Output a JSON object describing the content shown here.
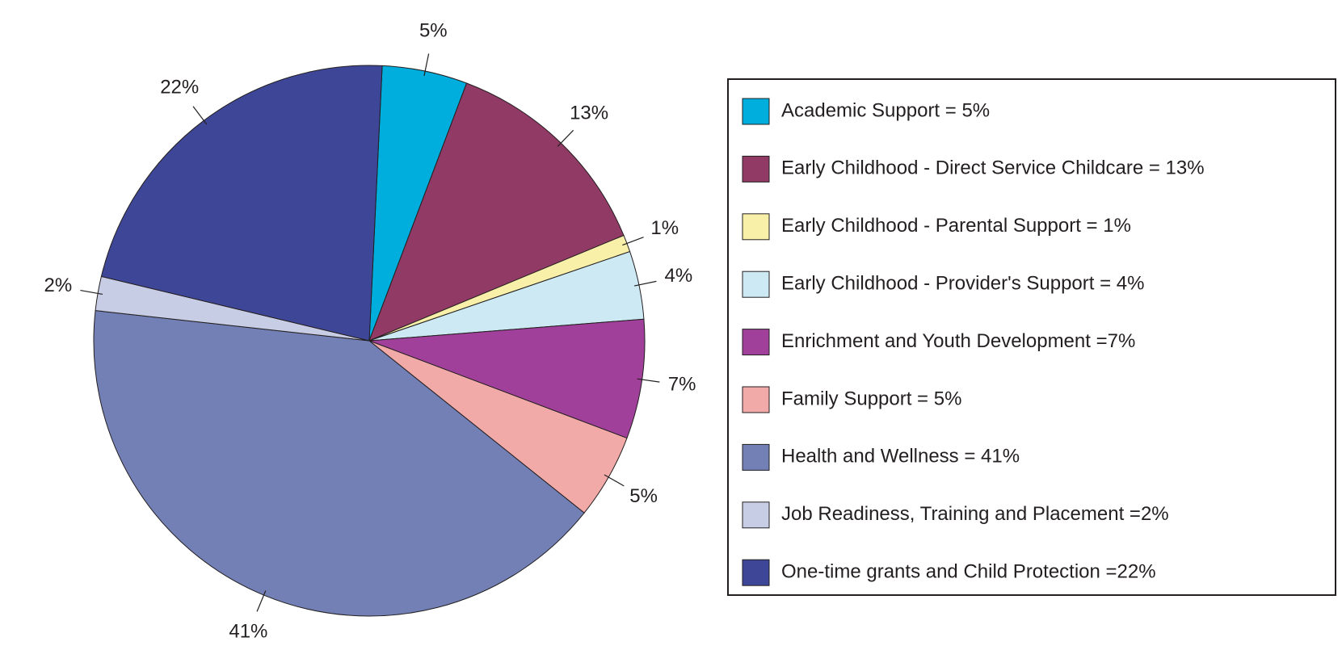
{
  "chart_data": {
    "type": "pie",
    "categories": [
      "Academic Support  = 5%",
      "Early Childhood - Direct Service Childcare  = 13%",
      "Early Childhood - Parental Support = 1%",
      "Early Childhood - Provider's Support = 4%",
      "Enrichment and Youth Development =7%",
      "Family Support = 5%",
      "Health and Wellness = 41%",
      "Job Readiness, Training and Placement =2%",
      "One-time grants and Child Protection =22%"
    ],
    "values": [
      5,
      13,
      1,
      4,
      7,
      5,
      41,
      2,
      22
    ],
    "value_labels": [
      "5%",
      "13%",
      "1%",
      "4%",
      "7%",
      "5%",
      "41%",
      "2%",
      "22%"
    ],
    "colors": [
      "#00aedd",
      "#923a66",
      "#f8f0a8",
      "#cdeaf4",
      "#a0409a",
      "#f2aaa8",
      "#7280b6",
      "#c8cde6",
      "#3e4697"
    ],
    "legend": "right"
  }
}
